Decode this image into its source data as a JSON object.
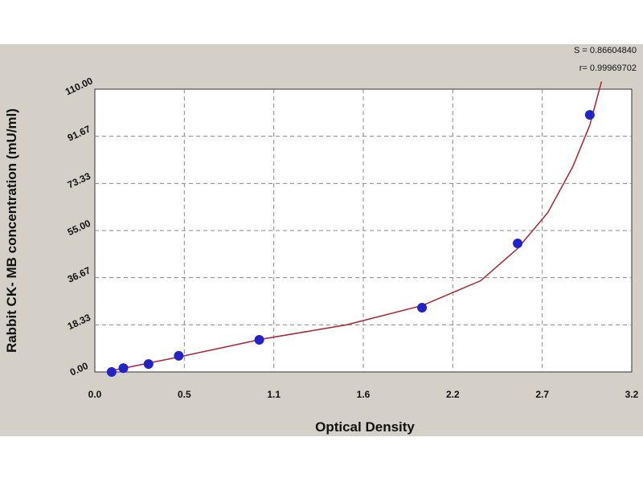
{
  "chart_data": {
    "type": "scatter",
    "title": "",
    "xlabel": "Optical Density",
    "ylabel": "Rabbit CK- MB concentration (mU/ml)",
    "xlim": [
      0,
      3.2
    ],
    "ylim": [
      0,
      110
    ],
    "x_ticks": [
      "0.0",
      "0.5",
      "1.1",
      "1.6",
      "2.2",
      "2.7",
      "3.2"
    ],
    "y_ticks": [
      "0.00",
      "18.33",
      "36.67",
      "55.00",
      "73.33",
      "91.67",
      "110.00"
    ],
    "grid": true,
    "series": [
      {
        "type": "scatter",
        "color": "#2222cc",
        "points": [
          {
            "x": 0.1,
            "y": 0.0
          },
          {
            "x": 0.17,
            "y": 1.5
          },
          {
            "x": 0.32,
            "y": 3.1
          },
          {
            "x": 0.5,
            "y": 6.3
          },
          {
            "x": 0.98,
            "y": 12.5
          },
          {
            "x": 1.95,
            "y": 25.0
          },
          {
            "x": 2.52,
            "y": 50.0
          },
          {
            "x": 2.95,
            "y": 100.0
          }
        ]
      },
      {
        "type": "line",
        "color": "#aa2233",
        "points": [
          {
            "x": 0.1,
            "y": 0.5
          },
          {
            "x": 0.5,
            "y": 5.8
          },
          {
            "x": 1.0,
            "y": 12.8
          },
          {
            "x": 1.5,
            "y": 18.3
          },
          {
            "x": 1.95,
            "y": 25.8
          },
          {
            "x": 2.3,
            "y": 35.5
          },
          {
            "x": 2.52,
            "y": 48.0
          },
          {
            "x": 2.7,
            "y": 62.0
          },
          {
            "x": 2.85,
            "y": 80.0
          },
          {
            "x": 2.95,
            "y": 96.0
          },
          {
            "x": 3.02,
            "y": 113.0
          }
        ]
      }
    ],
    "annotations": [
      "S = 0.86604840",
      "r= 0.99969702"
    ]
  }
}
